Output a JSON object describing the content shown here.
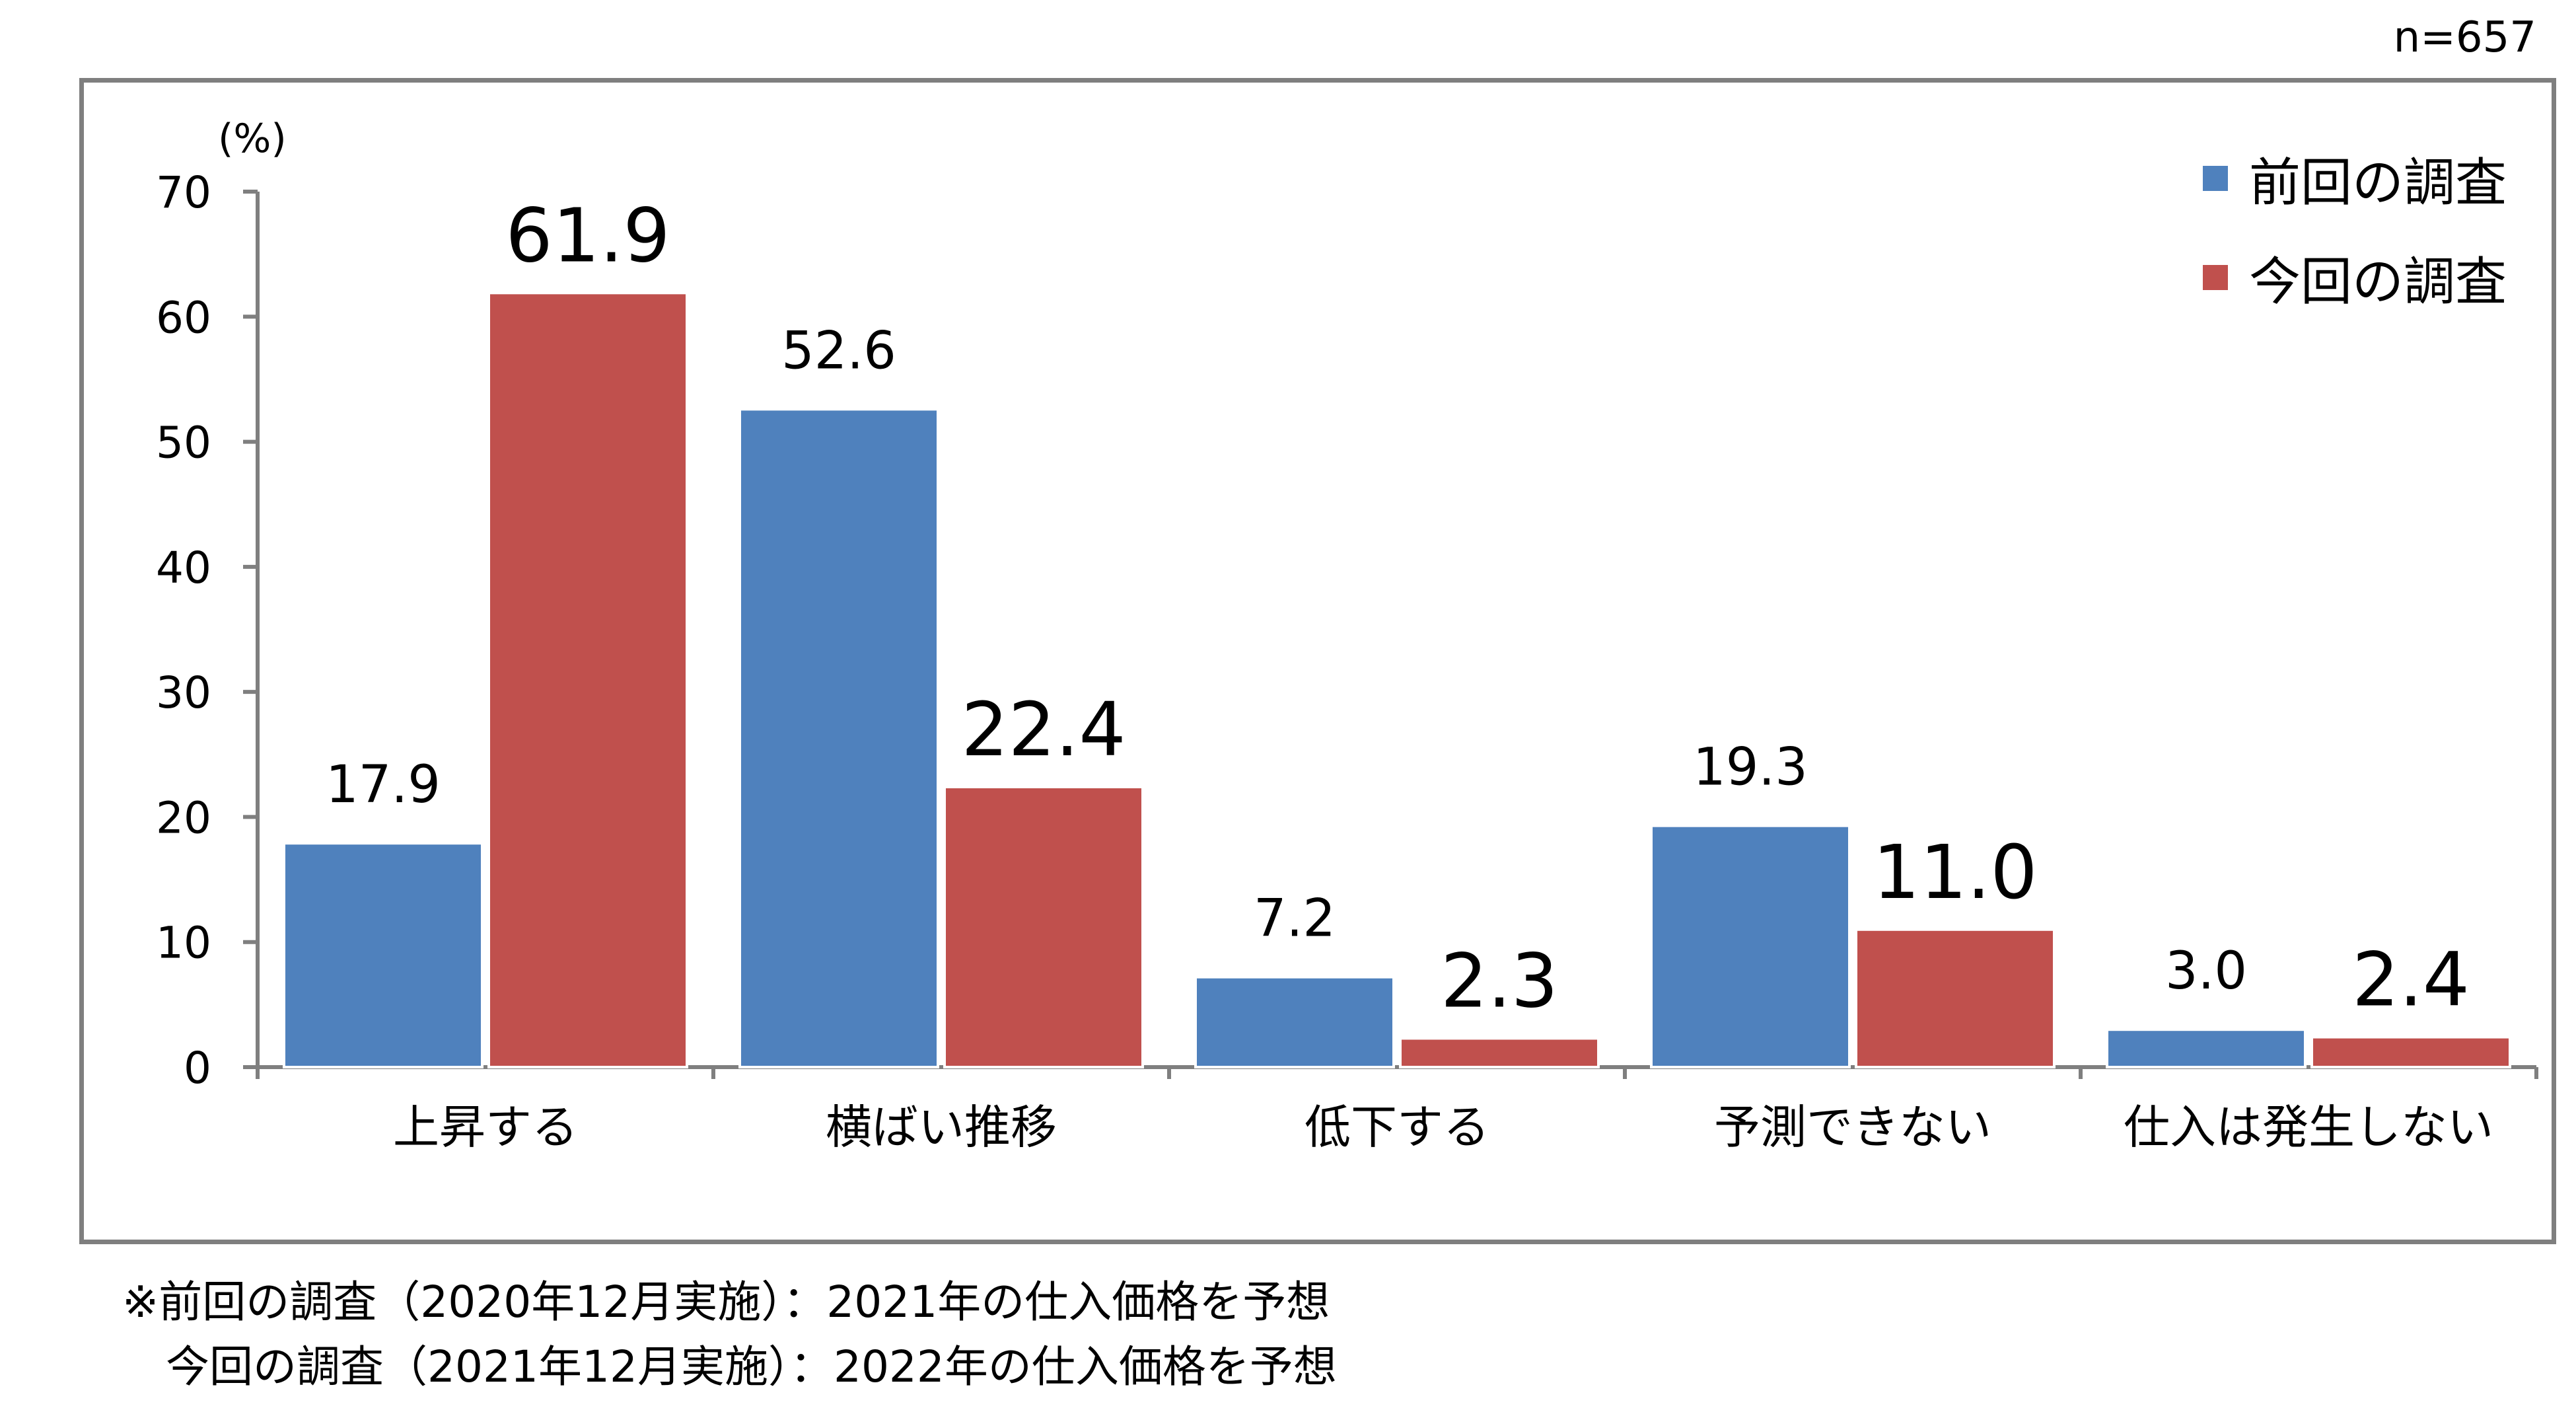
{
  "sample_size": "n=657",
  "colors": {
    "previous": "#4f81bd",
    "current": "#c0504d",
    "axis": "#7f7f7f"
  },
  "chart_data": {
    "type": "bar",
    "ylabel": "(%)",
    "ylim": [
      0,
      70
    ],
    "yticks": [
      0,
      10,
      20,
      30,
      40,
      50,
      60,
      70
    ],
    "categories": [
      "上昇する",
      "横ばい推移",
      "低下する",
      "予測できない",
      "仕入は発生しない"
    ],
    "series": [
      {
        "name": "前回の調査",
        "values": [
          17.9,
          52.6,
          7.2,
          19.3,
          3.0
        ],
        "value_labels": [
          "17.9",
          "52.6",
          "7.2",
          "19.3",
          "3.0"
        ]
      },
      {
        "name": "今回の調査",
        "values": [
          61.9,
          22.4,
          2.3,
          11.0,
          2.4
        ],
        "value_labels": [
          "61.9",
          "22.4",
          "2.3",
          "11.0",
          "2.4"
        ]
      }
    ],
    "legend_position": "top-right",
    "grid": false
  },
  "notes": [
    "※前回の調査（2020年12月実施）：2021年の仕入価格を予想",
    "　今回の調査（2021年12月実施）：2022年の仕入価格を予想"
  ]
}
